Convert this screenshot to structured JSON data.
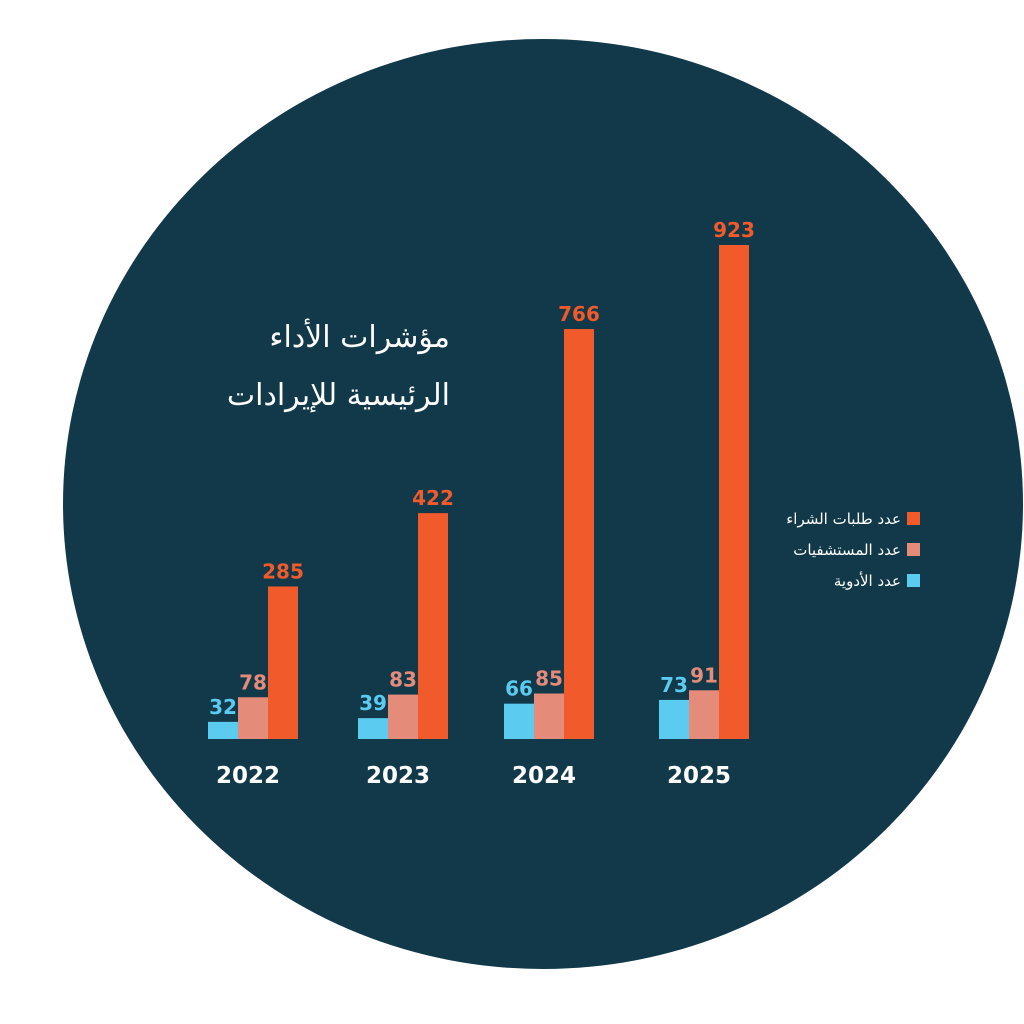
{
  "chart_data": {
    "type": "bar",
    "title": "مؤشرات الأداء الرئيسية للإيرادات",
    "title_lines": [
      "مؤشرات الأداء",
      "الرئيسية للإيرادات"
    ],
    "categories": [
      "2022",
      "2023",
      "2024",
      "2025"
    ],
    "series": [
      {
        "name": "عدد الأدوية",
        "color": "#5bcbf0",
        "values": [
          32,
          39,
          66,
          73
        ]
      },
      {
        "name": "عدد المستشفيات",
        "color": "#e58b7a",
        "values": [
          78,
          83,
          85,
          91
        ]
      },
      {
        "name": "عدد طلبات الشراء",
        "color": "#f15a2b",
        "values": [
          285,
          422,
          766,
          923
        ]
      }
    ],
    "legend_order": [
      2,
      1,
      0
    ],
    "legend_position": "right",
    "ylim": [
      0,
      923
    ],
    "grid": false,
    "data_labels": true,
    "background_color": "#12394a"
  }
}
